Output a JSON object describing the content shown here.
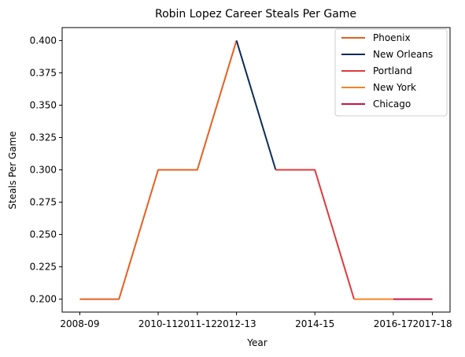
{
  "chart_data": {
    "type": "line",
    "title": "Robin Lopez Career Steals Per Game",
    "xlabel": "Year",
    "ylabel": "Steals Per Game",
    "x_ticks": [
      "2008-09",
      "2010-11",
      "2011-12",
      "2012-13",
      "2014-15",
      "2016-17",
      "2017-18"
    ],
    "ylim": [
      0.19,
      0.41
    ],
    "y_ticks": [
      0.2,
      0.225,
      0.25,
      0.275,
      0.3,
      0.325,
      0.35,
      0.375,
      0.4
    ],
    "y_tick_labels": [
      "0.200",
      "0.225",
      "0.250",
      "0.275",
      "0.300",
      "0.325",
      "0.350",
      "0.375",
      "0.400"
    ],
    "grid": false,
    "legend_position": "top-right",
    "series": [
      {
        "name": "Phoenix",
        "color": "#E56020",
        "x": [
          "2008-09",
          "2009-10",
          "2010-11",
          "2011-12",
          "2012-13"
        ],
        "y": [
          0.2,
          0.2,
          0.3,
          0.3,
          0.4
        ]
      },
      {
        "name": "New Orleans",
        "color": "#0C2C56",
        "x": [
          "2012-13",
          "2013-14"
        ],
        "y": [
          0.4,
          0.3
        ]
      },
      {
        "name": "Portland",
        "color": "#E03A3E",
        "x": [
          "2013-14",
          "2014-15",
          "2015-16"
        ],
        "y": [
          0.3,
          0.3,
          0.2
        ]
      },
      {
        "name": "New York",
        "color": "#F58426",
        "x": [
          "2015-16",
          "2016-17"
        ],
        "y": [
          0.2,
          0.2
        ]
      },
      {
        "name": "Chicago",
        "color": "#CE1141",
        "x": [
          "2016-17",
          "2017-18"
        ],
        "y": [
          0.2,
          0.2
        ]
      }
    ]
  }
}
